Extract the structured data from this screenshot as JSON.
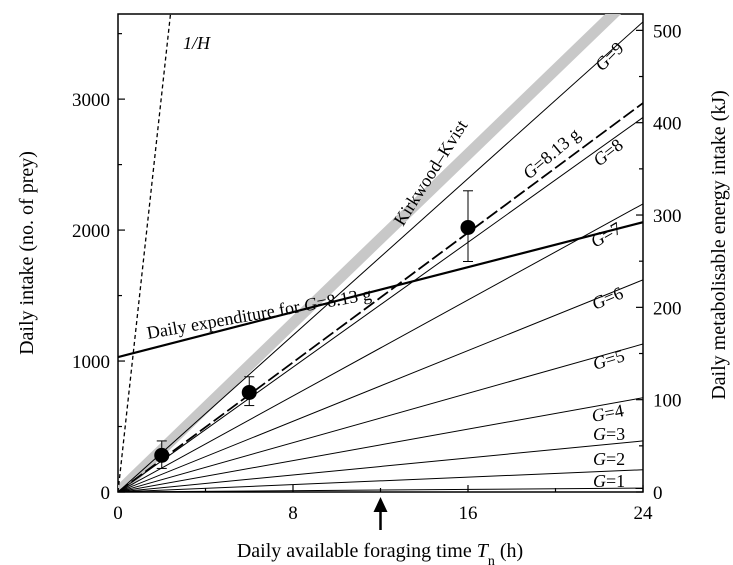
{
  "chart_data": {
    "type": "line",
    "x_axis": {
      "label": "Daily available foraging time",
      "label_symbol": "T",
      "label_subscript": "n",
      "label_unit": "(h)",
      "range": [
        0,
        24
      ],
      "ticks": [
        "0",
        "8",
        "16",
        "24"
      ],
      "tick_values": [
        0,
        8,
        16,
        24
      ],
      "minor_tick_values": [
        4,
        12,
        20
      ]
    },
    "y_axis_left": {
      "label": "Daily intake (no. of prey)",
      "range": [
        0,
        3650
      ],
      "ticks": [
        "0",
        "1000",
        "2000",
        "3000"
      ],
      "tick_values": [
        0,
        1000,
        2000,
        3000
      ],
      "minor_tick_values": [
        500,
        1500,
        2500,
        3500
      ]
    },
    "y_axis_right": {
      "label": "Daily metabolisable energy intake (kJ)",
      "ticks": [
        "0",
        "100",
        "200",
        "300",
        "400",
        "500"
      ],
      "tick_values_kJ": [
        0,
        100,
        200,
        300,
        400,
        500
      ],
      "prey_per_kJ": 7.05
    },
    "marker_arrow_x": 12,
    "series": [
      {
        "name": "1/H",
        "style": "short-dash",
        "points": [
          [
            0,
            0
          ],
          [
            2.4,
            3650
          ]
        ]
      },
      {
        "name": "Kirkwood–Kvist",
        "style": "thick-grey",
        "points": [
          [
            0,
            0
          ],
          [
            24,
            3870
          ]
        ]
      },
      {
        "name": "G=9",
        "style": "thin",
        "points": [
          [
            0,
            0
          ],
          [
            24,
            3590
          ]
        ]
      },
      {
        "name": "G=8.13 g",
        "style": "long-dash",
        "points": [
          [
            0,
            0
          ],
          [
            24,
            2970
          ]
        ]
      },
      {
        "name": "G=8",
        "style": "thin",
        "points": [
          [
            0,
            0
          ],
          [
            24,
            2860
          ]
        ]
      },
      {
        "name": "G=7",
        "style": "thin",
        "points": [
          [
            0,
            0
          ],
          [
            24,
            2200
          ]
        ]
      },
      {
        "name": "G=6",
        "style": "thin",
        "points": [
          [
            0,
            0
          ],
          [
            24,
            1620
          ]
        ]
      },
      {
        "name": "G=5",
        "style": "thin",
        "points": [
          [
            0,
            0
          ],
          [
            24,
            1130
          ]
        ]
      },
      {
        "name": "G=4",
        "style": "thin",
        "points": [
          [
            0,
            0
          ],
          [
            24,
            720
          ]
        ]
      },
      {
        "name": "G=3",
        "style": "thin",
        "points": [
          [
            0,
            0
          ],
          [
            24,
            390
          ]
        ]
      },
      {
        "name": "G=2",
        "style": "thin",
        "points": [
          [
            0,
            0
          ],
          [
            24,
            170
          ]
        ]
      },
      {
        "name": "G=1",
        "style": "thin",
        "points": [
          [
            0,
            0
          ],
          [
            24,
            30
          ]
        ]
      },
      {
        "name": "Daily expenditure for G=8.13 g",
        "style": "thick-black",
        "points": [
          [
            0,
            1030
          ],
          [
            24,
            2060
          ]
        ]
      }
    ],
    "observations": [
      {
        "x": 2,
        "y": 280,
        "err_low": 180,
        "err_high": 390
      },
      {
        "x": 6,
        "y": 760,
        "err_low": 660,
        "err_high": 880
      },
      {
        "x": 16,
        "y": 2020,
        "err_low": 1760,
        "err_high": 2300
      }
    ],
    "grid": false,
    "legend": "none (lines labelled directly)"
  }
}
